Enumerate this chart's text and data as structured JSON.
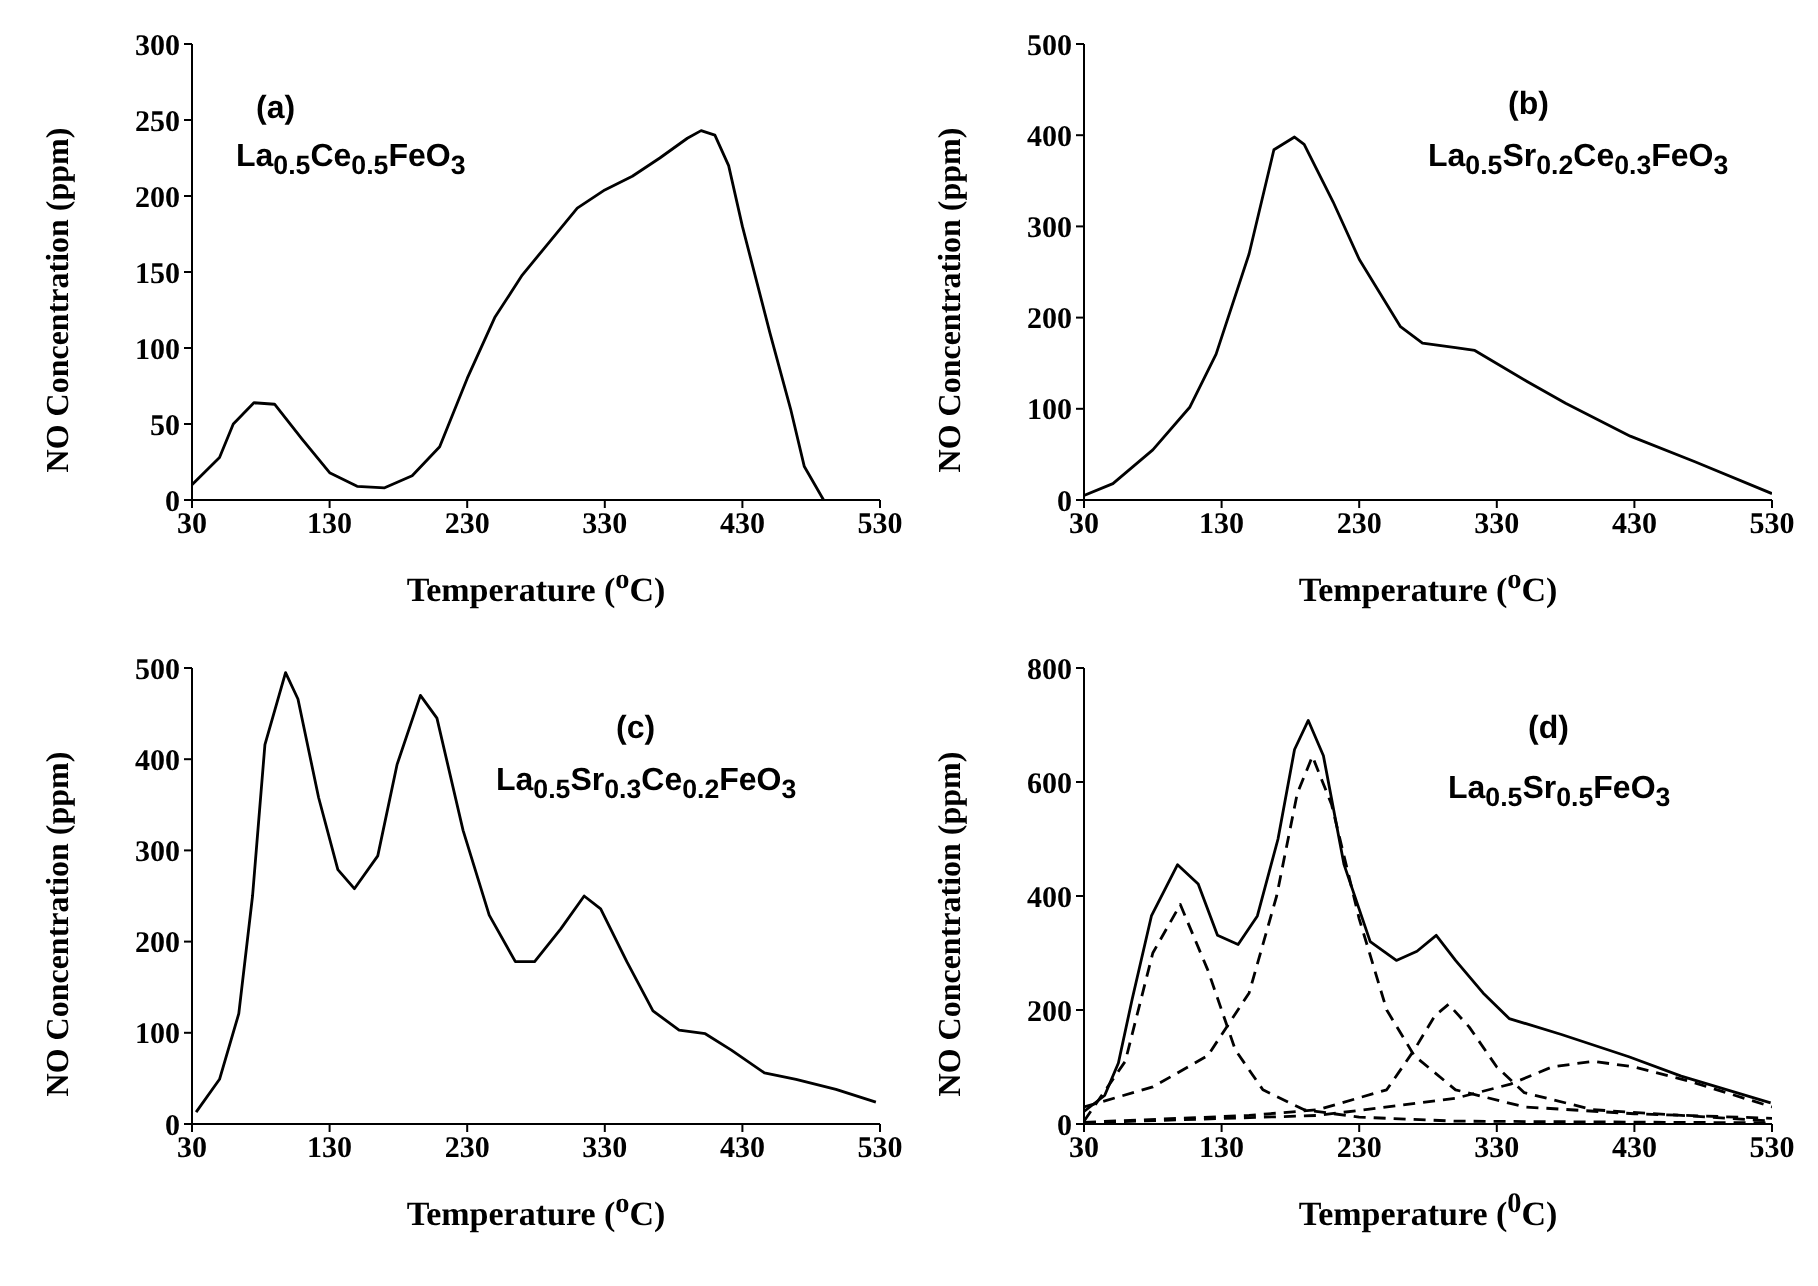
{
  "chart_data": [
    {
      "type": "line",
      "xlabel": "Temperature ($^{o}$C)",
      "ylabel": "NO Concentration (ppm)",
      "annotations": [
        "(a)",
        "La$_{0.5}$Ce$_{0.5}$FeO$_{3}$"
      ],
      "xlim": [
        30,
        530
      ],
      "xticks": [
        30,
        130,
        230,
        330,
        430,
        530
      ],
      "ylim": [
        0,
        300
      ],
      "yticks": [
        0,
        50,
        100,
        150,
        200,
        250,
        300
      ],
      "marker": "none",
      "series": [
        {
          "color": "#000000",
          "line_style": "solid",
          "x": [
            30,
            50,
            60,
            75,
            90,
            110,
            130,
            150,
            170,
            190,
            210,
            230,
            250,
            270,
            290,
            310,
            330,
            350,
            370,
            390,
            400,
            410,
            420,
            430,
            450,
            465,
            475,
            489
          ],
          "values": [
            10,
            28,
            50,
            64,
            63,
            40,
            18,
            9,
            8,
            16,
            35,
            80,
            120,
            148,
            170,
            192,
            204,
            213,
            225,
            238,
            243,
            240,
            220,
            180,
            110,
            60,
            22,
            0
          ]
        }
      ]
    },
    {
      "type": "line",
      "xlabel": "Temperature ($^{o}$C)",
      "ylabel": "NO Concentration (ppm)",
      "annotations": [
        "(b)",
        "La$_{0.5}$Sr$_{0.2}$Ce$_{0.3}$FeO$_{3}$"
      ],
      "xlim": [
        30,
        530
      ],
      "xticks": [
        30,
        130,
        230,
        330,
        430,
        530
      ],
      "ylim": [
        0,
        500
      ],
      "yticks": [
        0,
        100,
        200,
        300,
        400,
        500
      ],
      "marker": "none",
      "series": [
        {
          "color": "#000000",
          "line_style": "solid",
          "x": [
            30,
            51,
            80,
            107,
            126,
            150,
            168,
            183,
            190,
            211,
            230,
            260,
            276,
            300,
            314,
            352,
            380,
            427,
            474,
            530
          ],
          "values": [
            5,
            18,
            55,
            102,
            160,
            270,
            384,
            398,
            390,
            327,
            264,
            190,
            172,
            167,
            164,
            130,
            106,
            70,
            42,
            7
          ]
        }
      ]
    },
    {
      "type": "line",
      "xlabel": "Temperature ($^{o}$C)",
      "ylabel": "NO Concentration (ppm)",
      "annotations": [
        "(c)",
        "La$_{0.5}$Sr$_{0.3}$Ce$_{0.2}$FeO$_{3}$"
      ],
      "xlim": [
        30,
        530
      ],
      "xticks": [
        30,
        130,
        230,
        330,
        430,
        530
      ],
      "ylim": [
        0,
        500
      ],
      "yticks": [
        0,
        100,
        200,
        300,
        400,
        500
      ],
      "marker": "none",
      "series": [
        {
          "color": "#000000",
          "line_style": "solid",
          "x": [
            33,
            50,
            64,
            74,
            83,
            98,
            107,
            122,
            136,
            148,
            165,
            179,
            196,
            208,
            227,
            246,
            265,
            279,
            298,
            315,
            327,
            346,
            365,
            384,
            403,
            422,
            446,
            469,
            498,
            527
          ],
          "values": [
            13,
            49,
            121,
            250,
            416,
            495,
            466,
            358,
            279,
            258,
            294,
            394,
            470,
            445,
            322,
            229,
            178,
            178,
            214,
            250,
            236,
            178,
            124,
            103,
            99,
            81,
            56,
            49,
            38,
            24
          ]
        }
      ]
    },
    {
      "type": "line",
      "xlabel": "Temperature ($^{0}$C)",
      "ylabel": "NO Concentration (ppm)",
      "annotations": [
        "(d)",
        "La$_{0.5}$Sr$_{0.5}$FeO$_{3}$"
      ],
      "xlim": [
        30,
        530
      ],
      "xticks": [
        30,
        130,
        230,
        330,
        430,
        530
      ],
      "ylim": [
        0,
        800
      ],
      "yticks": [
        0,
        200,
        400,
        600,
        800
      ],
      "marker": "none",
      "series": [
        {
          "color": "#000000",
          "line_style": "solid",
          "x": [
            30,
            45,
            55,
            65,
            79,
            98,
            113,
            127,
            142,
            156,
            171,
            183,
            193,
            204,
            219,
            238,
            257,
            272,
            286,
            300,
            320,
            339,
            377,
            426,
            464,
            529
          ],
          "values": [
            22,
            50,
            107,
            219,
            365,
            455,
            421,
            331,
            315,
            365,
            500,
            657,
            708,
            646,
            455,
            320,
            287,
            303,
            331,
            287,
            230,
            185,
            157,
            118,
            84,
            37
          ]
        },
        {
          "color": "#000000",
          "line_style": "dashed",
          "x": [
            30,
            60,
            80,
            100,
            120,
            140,
            160,
            190,
            230,
            300,
            530
          ],
          "values": [
            5,
            110,
            300,
            385,
            270,
            130,
            60,
            25,
            12,
            5,
            2
          ]
        },
        {
          "color": "#000000",
          "line_style": "dashed",
          "x": [
            30,
            80,
            120,
            150,
            170,
            185,
            196,
            210,
            230,
            250,
            270,
            300,
            350,
            430,
            530
          ],
          "values": [
            30,
            65,
            120,
            230,
            400,
            580,
            645,
            560,
            360,
            200,
            120,
            60,
            30,
            18,
            10
          ]
        },
        {
          "color": "#000000",
          "line_style": "dashed",
          "x": [
            30,
            150,
            200,
            250,
            270,
            285,
            295,
            310,
            330,
            350,
            400,
            530
          ],
          "values": [
            3,
            15,
            25,
            60,
            130,
            190,
            210,
            170,
            100,
            55,
            25,
            5
          ]
        },
        {
          "color": "#000000",
          "line_style": "dashed",
          "x": [
            30,
            200,
            300,
            340,
            370,
            400,
            430,
            470,
            530
          ],
          "values": [
            2,
            15,
            45,
            70,
            100,
            110,
            100,
            75,
            30
          ]
        }
      ]
    }
  ]
}
